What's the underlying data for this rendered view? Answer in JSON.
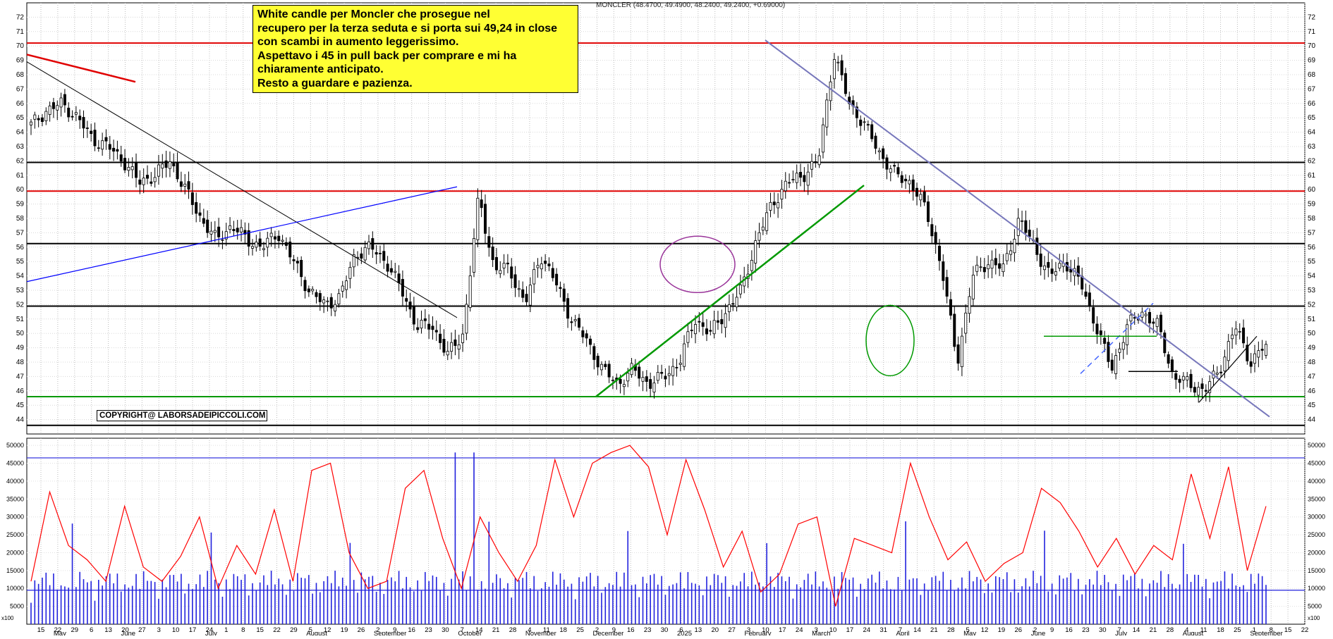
{
  "header": {
    "ticker_line": "MONCLER (48.4700, 49.4900, 48.2400, 49.2400, +0.69000)"
  },
  "annotation": {
    "text": "White candle per Moncler che prosegue nel\nrecupero per la terza seduta e si porta sui 49,24 in close\ncon scambi in aumento leggerissimo.\nAspettavo i 45 in pull back per comprare e mi ha\nchiaramente anticipato.\nResto a guardare e pazienza."
  },
  "copyright": "COPYRIGHT@ LABORSADEIPICCOLI.COM",
  "colors": {
    "price_line": "#000000",
    "resistance_red": "#e00000",
    "support_green": "#009900",
    "trend_blue": "#0000ff",
    "trend_slate": "#7777bb",
    "volume_bar": "#2222dd",
    "volume_avg": "#ff0000",
    "note_bg": "#ffff33"
  },
  "chart_data": [
    {
      "type": "candlestick",
      "title": "MONCLER (48.4700, 49.4900, 48.2400, 49.2400, +0.69000)",
      "ylim": [
        43,
        73
      ],
      "y_ticks": [
        44,
        45,
        46,
        47,
        48,
        49,
        50,
        51,
        52,
        53,
        54,
        55,
        56,
        57,
        58,
        59,
        60,
        61,
        62,
        63,
        64,
        65,
        66,
        67,
        68,
        69,
        70,
        71,
        72
      ],
      "grid": true,
      "last_bar": {
        "open": 48.47,
        "high": 49.49,
        "low": 48.24,
        "close": 49.24,
        "change": 0.69
      },
      "close_path_approx": [
        64.5,
        65.5,
        66,
        65,
        63.5,
        63,
        62,
        60.5,
        61,
        62,
        60,
        58,
        56.5,
        57.5,
        56.5,
        56,
        57,
        55,
        53,
        52,
        52.5,
        55.5,
        56,
        55,
        53,
        50.5,
        50.5,
        48.5,
        50,
        59.5,
        54.5,
        54.5,
        52,
        55.5,
        53.5,
        51,
        49.5,
        47.5,
        46.5,
        47.5,
        46.5,
        47,
        48,
        51,
        50,
        51.5,
        53,
        56.5,
        59,
        60.5,
        61,
        62,
        69.5,
        66,
        64.5,
        62.5,
        61,
        60.5,
        58.5,
        54.5,
        48,
        54,
        55,
        54.5,
        58,
        56,
        54,
        55,
        53.5,
        50.5,
        47.5,
        50.5,
        51.5,
        50.5,
        47,
        46.5,
        46,
        47.5,
        50.5,
        48,
        49.24
      ],
      "horizontal_levels": [
        {
          "value": 70.2,
          "color": "#e00000"
        },
        {
          "value": 61.9,
          "color": "#000000"
        },
        {
          "value": 59.9,
          "color": "#e00000"
        },
        {
          "value": 56.25,
          "color": "#000000"
        },
        {
          "value": 51.9,
          "color": "#000000"
        },
        {
          "value": 45.6,
          "color": "#009900"
        },
        {
          "value": 43.6,
          "color": "#000000"
        }
      ]
    },
    {
      "type": "bar",
      "ylim": [
        0,
        52000
      ],
      "y_ticks": [
        5000,
        10000,
        15000,
        20000,
        25000,
        30000,
        35000,
        40000,
        45000,
        50000
      ],
      "scale_label": "x100",
      "reference_levels": [
        46500,
        9500
      ],
      "volume_avg_path_approx": [
        12000,
        37000,
        22000,
        18000,
        12000,
        33000,
        16000,
        12000,
        19000,
        30000,
        10000,
        22000,
        14000,
        32000,
        12000,
        43000,
        45000,
        20000,
        10000,
        12000,
        38000,
        43000,
        24000,
        10000,
        30000,
        20000,
        12000,
        22000,
        46000,
        30000,
        45000,
        48000,
        50000,
        44000,
        25000,
        46000,
        32000,
        16000,
        26000,
        9000,
        14000,
        28000,
        30000,
        5000,
        24000,
        22000,
        20000,
        45000,
        30000,
        18000,
        23000,
        12000,
        17000,
        20000,
        38000,
        34000,
        26000,
        16000,
        24000,
        14000,
        22000,
        18000,
        42000,
        24000,
        44000,
        15000,
        33000
      ]
    }
  ],
  "x_axis": {
    "day_ticks": [
      "15",
      "22",
      "29",
      "6",
      "13",
      "20",
      "27",
      "3",
      "10",
      "17",
      "24",
      "1",
      "8",
      "15",
      "22",
      "29",
      "5",
      "12",
      "19",
      "26",
      "2",
      "9",
      "16",
      "23",
      "30",
      "7",
      "14",
      "21",
      "28",
      "4",
      "11",
      "18",
      "25",
      "2",
      "9",
      "16",
      "23",
      "30",
      "6",
      "13",
      "20",
      "27",
      "3",
      "10",
      "17",
      "24",
      "3",
      "10",
      "17",
      "24",
      "31",
      "7",
      "14",
      "21",
      "28",
      "5",
      "12",
      "19",
      "26",
      "2",
      "9",
      "16",
      "23",
      "30",
      "7",
      "14",
      "21",
      "28",
      "4",
      "11",
      "18",
      "25",
      "1",
      "8",
      "15",
      "22"
    ],
    "month_labels": [
      "May",
      "June",
      "July",
      "August",
      "September",
      "October",
      "November",
      "December",
      "2025",
      "February",
      "March",
      "April",
      "May",
      "June",
      "July",
      "August",
      "September"
    ]
  }
}
